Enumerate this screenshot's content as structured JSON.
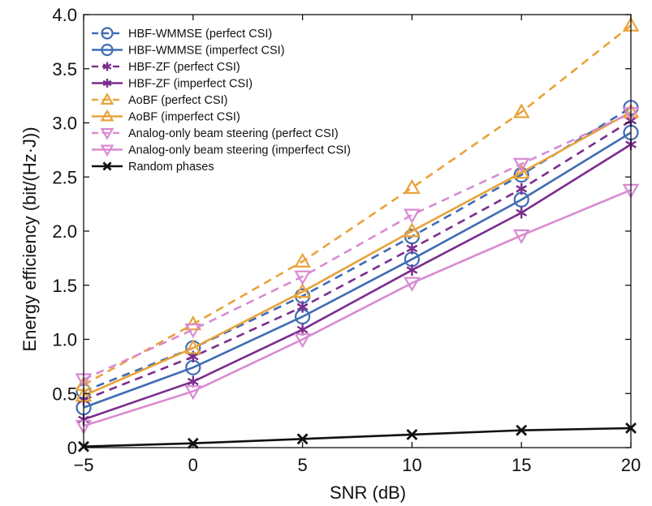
{
  "chart_data": {
    "type": "line",
    "title": "",
    "xlabel": "SNR (dB)",
    "ylabel": "Energy efficiency (bit/(Hz·J))",
    "x": [
      -5,
      0,
      5,
      10,
      15,
      20
    ],
    "xlim": [
      -5,
      20
    ],
    "ylim": [
      0,
      4
    ],
    "xticks": [
      "−5",
      "0",
      "5",
      "10",
      "15",
      "20"
    ],
    "yticks": [
      "0",
      "0.5",
      "1.0",
      "1.5",
      "2.0",
      "2.5",
      "3.0",
      "3.5",
      "4.0"
    ],
    "grid": false,
    "legend_position": "top-left",
    "series": [
      {
        "name": "HBF-WMMSE (perfect CSI)",
        "values": [
          0.52,
          0.92,
          1.4,
          1.95,
          2.52,
          3.14
        ],
        "color": "#3F6CB4",
        "line": "dashed",
        "marker": "circle"
      },
      {
        "name": "HBF-WMMSE (imperfect CSI)",
        "values": [
          0.37,
          0.74,
          1.21,
          1.74,
          2.29,
          2.91
        ],
        "color": "#3F6CB4",
        "line": "solid",
        "marker": "circle"
      },
      {
        "name": "HBF-ZF (perfect CSI)",
        "values": [
          0.44,
          0.84,
          1.3,
          1.84,
          2.39,
          3.02
        ],
        "color": "#7B2D8E",
        "line": "dashed",
        "marker": "asterisk"
      },
      {
        "name": "HBF-ZF (imperfect CSI)",
        "values": [
          0.26,
          0.61,
          1.09,
          1.64,
          2.17,
          2.8
        ],
        "color": "#7B2D8E",
        "line": "solid",
        "marker": "asterisk"
      },
      {
        "name": "AoBF (perfect CSI)",
        "values": [
          0.58,
          1.14,
          1.72,
          2.4,
          3.1,
          3.9
        ],
        "color": "#E8A33A",
        "line": "dashed",
        "marker": "triangle-up"
      },
      {
        "name": "AoBF (imperfect CSI)",
        "values": [
          0.48,
          0.92,
          1.44,
          2.0,
          2.54,
          3.1
        ],
        "color": "#E8A33A",
        "line": "solid",
        "marker": "triangle-up"
      },
      {
        "name": "Analog-only beam steering (perfect CSI)",
        "values": [
          0.63,
          1.09,
          1.58,
          2.15,
          2.62,
          3.09
        ],
        "color": "#D98AD2",
        "line": "dashed",
        "marker": "triangle-down"
      },
      {
        "name": "Analog-only beam steering (imperfect CSI)",
        "values": [
          0.2,
          0.52,
          1.0,
          1.52,
          1.96,
          2.38
        ],
        "color": "#D98AD2",
        "line": "solid",
        "marker": "triangle-down"
      },
      {
        "name": "Random phases",
        "values": [
          0.01,
          0.04,
          0.08,
          0.12,
          0.16,
          0.18
        ],
        "color": "#111111",
        "line": "solid",
        "marker": "x"
      }
    ]
  }
}
